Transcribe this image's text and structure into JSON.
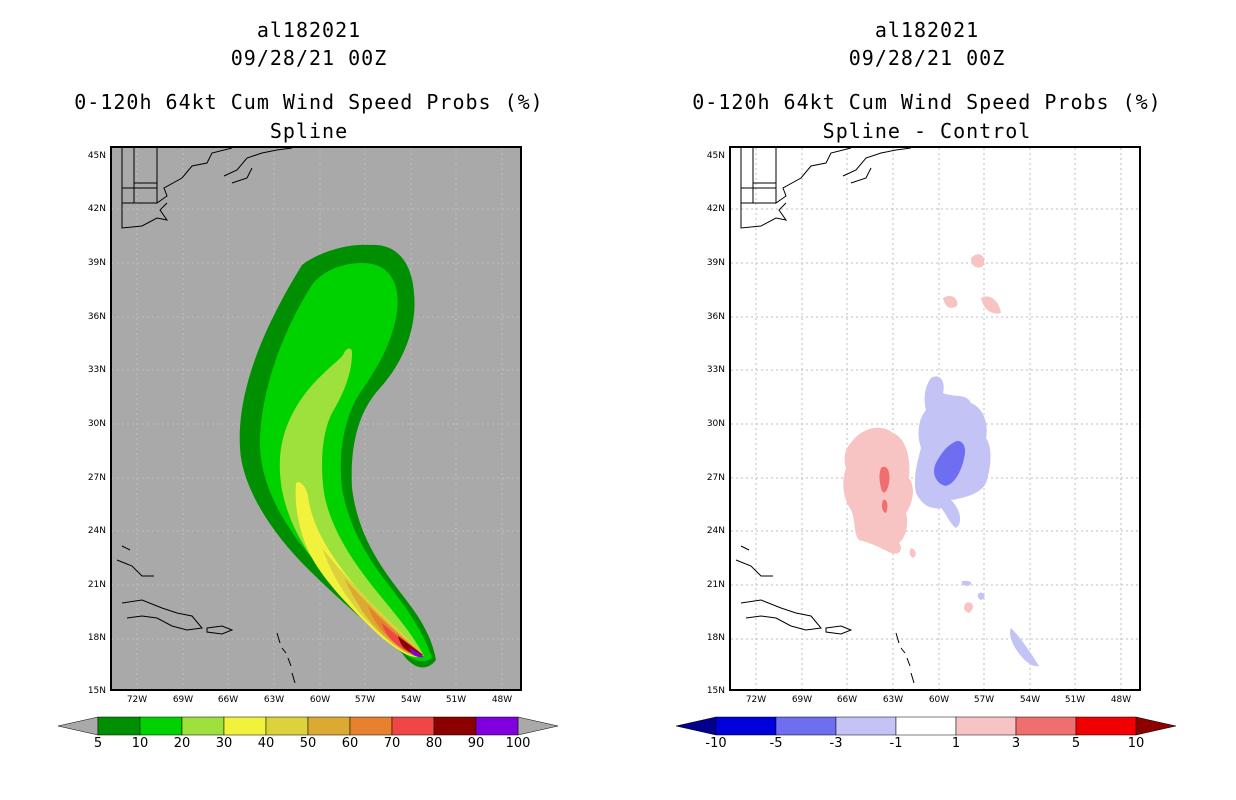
{
  "left_panel": {
    "storm_id": "al182021",
    "datetime": "09/28/21 00Z",
    "product": "0-120h 64kt Cum Wind Speed Probs (%)",
    "subtitle": "Spline",
    "lat_labels": [
      "45N",
      "42N",
      "39N",
      "36N",
      "33N",
      "30N",
      "27N",
      "24N",
      "21N",
      "18N",
      "15N"
    ],
    "lon_labels": [
      "72W",
      "69W",
      "66W",
      "63W",
      "60W",
      "57W",
      "54W",
      "51W",
      "48W"
    ],
    "colorbar": {
      "labels": [
        "5",
        "10",
        "20",
        "30",
        "40",
        "50",
        "60",
        "70",
        "80",
        "90",
        "100"
      ],
      "colors": [
        "#008f00",
        "#00d200",
        "#9ee03c",
        "#f2f23c",
        "#dcd23c",
        "#dcaa32",
        "#e6822d",
        "#f04646",
        "#8c0000",
        "#7f00dc"
      ],
      "end_color": "#a9a9a9"
    }
  },
  "right_panel": {
    "storm_id": "al182021",
    "datetime": "09/28/21 00Z",
    "product": "0-120h 64kt Cum Wind Speed Probs (%)",
    "subtitle": "Spline - Control",
    "lat_labels": [
      "45N",
      "42N",
      "39N",
      "36N",
      "33N",
      "30N",
      "27N",
      "24N",
      "21N",
      "18N",
      "15N"
    ],
    "lon_labels": [
      "72W",
      "69W",
      "66W",
      "63W",
      "60W",
      "57W",
      "54W",
      "51W",
      "48W"
    ],
    "colorbar": {
      "labels": [
        "-10",
        "-5",
        "-3",
        "-1",
        "1",
        "3",
        "5",
        "10"
      ],
      "colors": [
        "#0000dc",
        "#6e6ef0",
        "#c3c3f5",
        "#ffffff",
        "#f7c3c3",
        "#f06e6e",
        "#f00000"
      ],
      "left_end_color": "#00008c",
      "right_end_color": "#8c0000"
    }
  }
}
